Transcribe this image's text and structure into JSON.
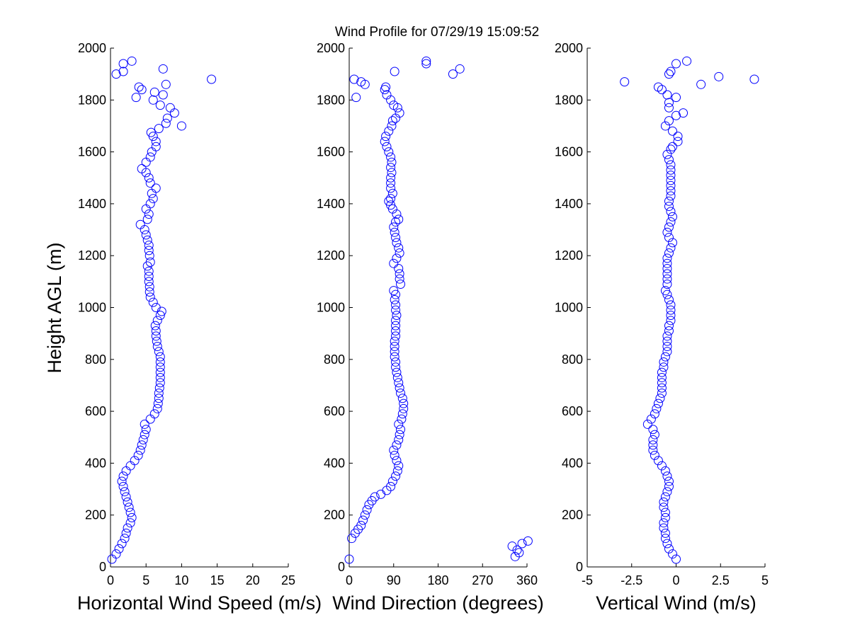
{
  "title": "Wind Profile for  07/29/19 15:09:52",
  "ylabel": "Height AGL (m)",
  "colors": {
    "marker": "#0000ff",
    "axis": "#000000",
    "background": "#ffffff"
  },
  "chart_data": [
    {
      "type": "scatter",
      "xlabel": "Horizontal Wind Speed (m/s)",
      "ylabel": "Height AGL (m)",
      "xlim": [
        0,
        25
      ],
      "ylim": [
        0,
        2000
      ],
      "xticks": [
        0,
        5,
        10,
        15,
        20,
        25
      ],
      "xtick_labels": [
        "0",
        "5",
        "10",
        "15",
        "20",
        "25"
      ],
      "yticks": [
        0,
        200,
        400,
        600,
        800,
        1000,
        1200,
        1400,
        1600,
        1800,
        2000
      ],
      "ytick_labels": [
        "0",
        "200",
        "400",
        "600",
        "800",
        "1000",
        "1200",
        "1400",
        "1600",
        "1800",
        "2000"
      ],
      "grid": false,
      "points": [
        [
          0.2,
          30
        ],
        [
          0.8,
          50
        ],
        [
          1.2,
          70
        ],
        [
          1.6,
          90
        ],
        [
          2.0,
          110
        ],
        [
          2.2,
          130
        ],
        [
          2.4,
          150
        ],
        [
          2.8,
          170
        ],
        [
          3.0,
          190
        ],
        [
          2.8,
          210
        ],
        [
          2.6,
          230
        ],
        [
          2.4,
          250
        ],
        [
          2.2,
          270
        ],
        [
          2.0,
          290
        ],
        [
          1.8,
          310
        ],
        [
          1.6,
          330
        ],
        [
          1.8,
          350
        ],
        [
          2.2,
          370
        ],
        [
          2.8,
          390
        ],
        [
          3.4,
          410
        ],
        [
          3.9,
          430
        ],
        [
          4.2,
          450
        ],
        [
          4.4,
          470
        ],
        [
          4.6,
          490
        ],
        [
          4.8,
          510
        ],
        [
          5.0,
          530
        ],
        [
          4.8,
          550
        ],
        [
          5.6,
          570
        ],
        [
          6.2,
          590
        ],
        [
          6.6,
          610
        ],
        [
          6.7,
          630
        ],
        [
          6.8,
          650
        ],
        [
          6.8,
          670
        ],
        [
          6.9,
          690
        ],
        [
          7.0,
          710
        ],
        [
          7.0,
          730
        ],
        [
          7.0,
          750
        ],
        [
          7.0,
          770
        ],
        [
          7.0,
          790
        ],
        [
          7.0,
          810
        ],
        [
          6.8,
          830
        ],
        [
          6.6,
          850
        ],
        [
          6.5,
          870
        ],
        [
          6.4,
          890
        ],
        [
          6.4,
          910
        ],
        [
          6.3,
          930
        ],
        [
          6.6,
          950
        ],
        [
          7.0,
          970
        ],
        [
          7.2,
          985
        ],
        [
          6.4,
          1000
        ],
        [
          6.0,
          1020
        ],
        [
          5.6,
          1040
        ],
        [
          5.5,
          1060
        ],
        [
          5.5,
          1080
        ],
        [
          5.4,
          1100
        ],
        [
          5.4,
          1120
        ],
        [
          5.4,
          1140
        ],
        [
          5.2,
          1160
        ],
        [
          5.6,
          1175
        ],
        [
          5.5,
          1200
        ],
        [
          5.4,
          1220
        ],
        [
          5.4,
          1240
        ],
        [
          5.2,
          1260
        ],
        [
          5.0,
          1280
        ],
        [
          4.8,
          1300
        ],
        [
          4.2,
          1320
        ],
        [
          5.2,
          1340
        ],
        [
          5.4,
          1360
        ],
        [
          5.0,
          1380
        ],
        [
          5.6,
          1400
        ],
        [
          6.0,
          1420
        ],
        [
          5.8,
          1440
        ],
        [
          6.4,
          1460
        ],
        [
          5.6,
          1480
        ],
        [
          5.4,
          1500
        ],
        [
          5.0,
          1520
        ],
        [
          4.4,
          1535
        ],
        [
          5.0,
          1560
        ],
        [
          5.6,
          1580
        ],
        [
          5.8,
          1600
        ],
        [
          6.4,
          1620
        ],
        [
          6.4,
          1640
        ],
        [
          6.0,
          1660
        ],
        [
          5.7,
          1675
        ],
        [
          6.8,
          1690
        ],
        [
          10.0,
          1700
        ],
        [
          7.8,
          1710
        ],
        [
          8.0,
          1730
        ],
        [
          9.0,
          1750
        ],
        [
          8.4,
          1770
        ],
        [
          7.0,
          1780
        ],
        [
          6.0,
          1800
        ],
        [
          3.6,
          1810
        ],
        [
          7.4,
          1820
        ],
        [
          6.2,
          1830
        ],
        [
          4.4,
          1840
        ],
        [
          4.0,
          1850
        ],
        [
          7.8,
          1860
        ],
        [
          14.2,
          1880
        ],
        [
          0.8,
          1900
        ],
        [
          1.8,
          1910
        ],
        [
          7.4,
          1920
        ],
        [
          1.8,
          1940
        ],
        [
          3.0,
          1950
        ]
      ]
    },
    {
      "type": "scatter",
      "xlabel": "Wind Direction (degrees)",
      "ylabel": "",
      "xlim": [
        0,
        360
      ],
      "ylim": [
        0,
        2000
      ],
      "xticks": [
        0,
        90,
        180,
        270,
        360
      ],
      "xtick_labels": [
        "0",
        "90",
        "180",
        "270",
        "360"
      ],
      "yticks": [
        0,
        200,
        400,
        600,
        800,
        1000,
        1200,
        1400,
        1600,
        1800,
        2000
      ],
      "ytick_labels": [
        "0",
        "200",
        "400",
        "600",
        "800",
        "1000",
        "1200",
        "1400",
        "1600",
        "1800",
        "2000"
      ],
      "grid": false,
      "points": [
        [
          0,
          30
        ],
        [
          5,
          110
        ],
        [
          12,
          130
        ],
        [
          18,
          145
        ],
        [
          24,
          160
        ],
        [
          28,
          180
        ],
        [
          32,
          200
        ],
        [
          36,
          220
        ],
        [
          40,
          240
        ],
        [
          46,
          255
        ],
        [
          52,
          270
        ],
        [
          64,
          280
        ],
        [
          76,
          295
        ],
        [
          84,
          310
        ],
        [
          88,
          330
        ],
        [
          94,
          350
        ],
        [
          98,
          370
        ],
        [
          100,
          390
        ],
        [
          96,
          410
        ],
        [
          92,
          430
        ],
        [
          90,
          450
        ],
        [
          96,
          470
        ],
        [
          100,
          490
        ],
        [
          102,
          510
        ],
        [
          104,
          530
        ],
        [
          100,
          550
        ],
        [
          106,
          570
        ],
        [
          108,
          590
        ],
        [
          110,
          610
        ],
        [
          110,
          630
        ],
        [
          108,
          650
        ],
        [
          104,
          670
        ],
        [
          102,
          690
        ],
        [
          100,
          710
        ],
        [
          98,
          730
        ],
        [
          96,
          750
        ],
        [
          94,
          770
        ],
        [
          94,
          790
        ],
        [
          92,
          810
        ],
        [
          92,
          830
        ],
        [
          92,
          850
        ],
        [
          92,
          870
        ],
        [
          94,
          890
        ],
        [
          94,
          910
        ],
        [
          94,
          930
        ],
        [
          94,
          950
        ],
        [
          96,
          970
        ],
        [
          94,
          990
        ],
        [
          94,
          1010
        ],
        [
          92,
          1030
        ],
        [
          94,
          1050
        ],
        [
          90,
          1065
        ],
        [
          104,
          1090
        ],
        [
          102,
          1110
        ],
        [
          102,
          1130
        ],
        [
          100,
          1150
        ],
        [
          90,
          1170
        ],
        [
          96,
          1190
        ],
        [
          102,
          1210
        ],
        [
          100,
          1230
        ],
        [
          96,
          1250
        ],
        [
          94,
          1270
        ],
        [
          92,
          1290
        ],
        [
          90,
          1310
        ],
        [
          94,
          1330
        ],
        [
          100,
          1340
        ],
        [
          96,
          1360
        ],
        [
          88,
          1380
        ],
        [
          84,
          1395
        ],
        [
          80,
          1410
        ],
        [
          84,
          1420
        ],
        [
          88,
          1440
        ],
        [
          84,
          1460
        ],
        [
          84,
          1480
        ],
        [
          84,
          1500
        ],
        [
          86,
          1520
        ],
        [
          84,
          1540
        ],
        [
          86,
          1560
        ],
        [
          84,
          1580
        ],
        [
          80,
          1600
        ],
        [
          76,
          1620
        ],
        [
          72,
          1640
        ],
        [
          74,
          1660
        ],
        [
          80,
          1680
        ],
        [
          86,
          1700
        ],
        [
          88,
          1720
        ],
        [
          94,
          1730
        ],
        [
          102,
          1750
        ],
        [
          98,
          1770
        ],
        [
          90,
          1780
        ],
        [
          84,
          1800
        ],
        [
          76,
          1820
        ],
        [
          72,
          1840
        ],
        [
          74,
          1850
        ],
        [
          14,
          1810
        ],
        [
          24,
          1870
        ],
        [
          32,
          1860
        ],
        [
          10,
          1880
        ],
        [
          92,
          1910
        ],
        [
          156,
          1940
        ],
        [
          156,
          1950
        ],
        [
          210,
          1900
        ],
        [
          224,
          1920
        ],
        [
          336,
          40
        ],
        [
          344,
          55
        ],
        [
          340,
          65
        ],
        [
          350,
          90
        ],
        [
          330,
          80
        ],
        [
          362,
          100
        ]
      ]
    },
    {
      "type": "scatter",
      "xlabel": "Vertical Wind (m/s)",
      "ylabel": "",
      "xlim": [
        -5,
        5
      ],
      "ylim": [
        0,
        2000
      ],
      "xticks": [
        -5,
        -2.5,
        0,
        2.5,
        5
      ],
      "xtick_labels": [
        "-5",
        "-2.5",
        "0",
        "2.5",
        "5"
      ],
      "yticks": [
        0,
        200,
        400,
        600,
        800,
        1000,
        1200,
        1400,
        1600,
        1800,
        2000
      ],
      "ytick_labels": [
        "0",
        "200",
        "400",
        "600",
        "800",
        "1000",
        "1200",
        "1400",
        "1600",
        "1800",
        "2000"
      ],
      "grid": false,
      "points": [
        [
          0.0,
          30
        ],
        [
          -0.2,
          50
        ],
        [
          -0.4,
          70
        ],
        [
          -0.5,
          90
        ],
        [
          -0.6,
          110
        ],
        [
          -0.6,
          130
        ],
        [
          -0.7,
          150
        ],
        [
          -0.7,
          170
        ],
        [
          -0.6,
          190
        ],
        [
          -0.6,
          210
        ],
        [
          -0.7,
          230
        ],
        [
          -0.7,
          250
        ],
        [
          -0.6,
          270
        ],
        [
          -0.5,
          290
        ],
        [
          -0.4,
          310
        ],
        [
          -0.4,
          330
        ],
        [
          -0.5,
          350
        ],
        [
          -0.6,
          370
        ],
        [
          -0.8,
          390
        ],
        [
          -1.0,
          410
        ],
        [
          -1.2,
          430
        ],
        [
          -1.3,
          450
        ],
        [
          -1.3,
          470
        ],
        [
          -1.3,
          490
        ],
        [
          -1.2,
          510
        ],
        [
          -1.3,
          530
        ],
        [
          -1.6,
          550
        ],
        [
          -1.4,
          570
        ],
        [
          -1.2,
          590
        ],
        [
          -1.1,
          610
        ],
        [
          -1.0,
          630
        ],
        [
          -0.9,
          650
        ],
        [
          -0.8,
          670
        ],
        [
          -0.8,
          690
        ],
        [
          -0.8,
          710
        ],
        [
          -0.8,
          730
        ],
        [
          -0.8,
          750
        ],
        [
          -0.7,
          770
        ],
        [
          -0.7,
          790
        ],
        [
          -0.6,
          810
        ],
        [
          -0.5,
          830
        ],
        [
          -0.5,
          850
        ],
        [
          -0.5,
          870
        ],
        [
          -0.5,
          890
        ],
        [
          -0.4,
          910
        ],
        [
          -0.4,
          930
        ],
        [
          -0.3,
          950
        ],
        [
          -0.3,
          970
        ],
        [
          -0.3,
          990
        ],
        [
          -0.3,
          1010
        ],
        [
          -0.4,
          1030
        ],
        [
          -0.5,
          1050
        ],
        [
          -0.6,
          1065
        ],
        [
          -0.5,
          1090
        ],
        [
          -0.5,
          1110
        ],
        [
          -0.5,
          1130
        ],
        [
          -0.5,
          1150
        ],
        [
          -0.5,
          1170
        ],
        [
          -0.5,
          1190
        ],
        [
          -0.4,
          1210
        ],
        [
          -0.3,
          1230
        ],
        [
          -0.2,
          1250
        ],
        [
          -0.4,
          1270
        ],
        [
          -0.5,
          1290
        ],
        [
          -0.4,
          1310
        ],
        [
          -0.3,
          1330
        ],
        [
          -0.2,
          1350
        ],
        [
          -0.3,
          1370
        ],
        [
          -0.4,
          1390
        ],
        [
          -0.4,
          1410
        ],
        [
          -0.3,
          1430
        ],
        [
          -0.3,
          1450
        ],
        [
          -0.3,
          1470
        ],
        [
          -0.3,
          1490
        ],
        [
          -0.3,
          1510
        ],
        [
          -0.3,
          1530
        ],
        [
          -0.3,
          1550
        ],
        [
          -0.4,
          1570
        ],
        [
          -0.5,
          1590
        ],
        [
          -0.3,
          1610
        ],
        [
          -0.2,
          1620
        ],
        [
          0.1,
          1640
        ],
        [
          0.1,
          1660
        ],
        [
          -0.2,
          1680
        ],
        [
          -0.6,
          1700
        ],
        [
          -0.4,
          1720
        ],
        [
          0.0,
          1740
        ],
        [
          0.4,
          1750
        ],
        [
          -0.4,
          1770
        ],
        [
          -0.4,
          1790
        ],
        [
          0.0,
          1810
        ],
        [
          -0.5,
          1820
        ],
        [
          -0.8,
          1840
        ],
        [
          -1.0,
          1850
        ],
        [
          1.4,
          1860
        ],
        [
          -2.9,
          1870
        ],
        [
          4.4,
          1880
        ],
        [
          2.4,
          1890
        ],
        [
          -0.4,
          1900
        ],
        [
          -0.3,
          1910
        ],
        [
          0.0,
          1940
        ],
        [
          0.6,
          1950
        ]
      ]
    }
  ]
}
